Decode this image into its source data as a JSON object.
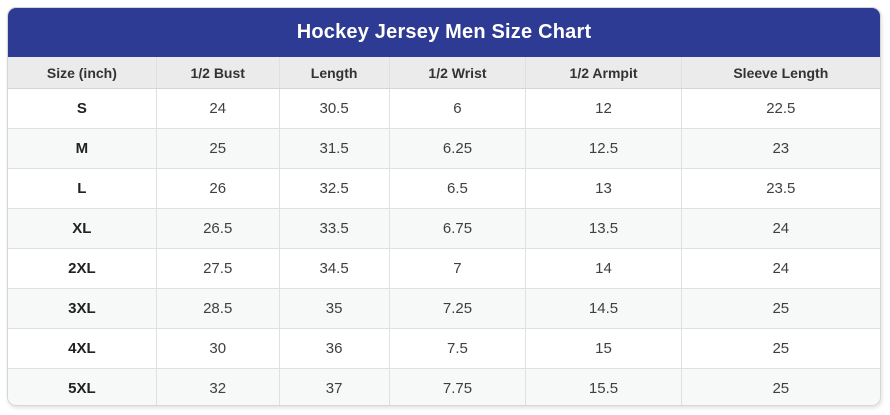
{
  "title": "Hockey Jersey Men Size Chart",
  "colors": {
    "title_bg": "#2e3b94",
    "title_text": "#ffffff",
    "header_bg": "#ebebeb",
    "row_stripe_bg": "#f7f8f8",
    "cell_border": "#e0e0e0",
    "body_text": "#3f3f3f"
  },
  "table": {
    "headers": [
      "Size (inch)",
      "1/2 Bust",
      "Length",
      "1/2 Wrist",
      "1/2 Armpit",
      "Sleeve Length"
    ],
    "rows": [
      [
        "S",
        "24",
        "30.5",
        "6",
        "12",
        "22.5"
      ],
      [
        "M",
        "25",
        "31.5",
        "6.25",
        "12.5",
        "23"
      ],
      [
        "L",
        "26",
        "32.5",
        "6.5",
        "13",
        "23.5"
      ],
      [
        "XL",
        "26.5",
        "33.5",
        "6.75",
        "13.5",
        "24"
      ],
      [
        "2XL",
        "27.5",
        "34.5",
        "7",
        "14",
        "24"
      ],
      [
        "3XL",
        "28.5",
        "35",
        "7.25",
        "14.5",
        "25"
      ],
      [
        "4XL",
        "30",
        "36",
        "7.5",
        "15",
        "25"
      ],
      [
        "5XL",
        "32",
        "37",
        "7.75",
        "15.5",
        "25"
      ]
    ]
  },
  "chart_data": {
    "type": "table",
    "title": "Hockey Jersey Men Size Chart",
    "unit": "inch",
    "columns": [
      "Size (inch)",
      "1/2 Bust",
      "Length",
      "1/2 Wrist",
      "1/2 Armpit",
      "Sleeve Length"
    ],
    "rows": [
      {
        "size": "S",
        "half_bust": 24,
        "length": 30.5,
        "half_wrist": 6,
        "half_armpit": 12,
        "sleeve_length": 22.5
      },
      {
        "size": "M",
        "half_bust": 25,
        "length": 31.5,
        "half_wrist": 6.25,
        "half_armpit": 12.5,
        "sleeve_length": 23
      },
      {
        "size": "L",
        "half_bust": 26,
        "length": 32.5,
        "half_wrist": 6.5,
        "half_armpit": 13,
        "sleeve_length": 23.5
      },
      {
        "size": "XL",
        "half_bust": 26.5,
        "length": 33.5,
        "half_wrist": 6.75,
        "half_armpit": 13.5,
        "sleeve_length": 24
      },
      {
        "size": "2XL",
        "half_bust": 27.5,
        "length": 34.5,
        "half_wrist": 7,
        "half_armpit": 14,
        "sleeve_length": 24
      },
      {
        "size": "3XL",
        "half_bust": 28.5,
        "length": 35,
        "half_wrist": 7.25,
        "half_armpit": 14.5,
        "sleeve_length": 25
      },
      {
        "size": "4XL",
        "half_bust": 30,
        "length": 36,
        "half_wrist": 7.5,
        "half_armpit": 15,
        "sleeve_length": 25
      },
      {
        "size": "5XL",
        "half_bust": 32,
        "length": 37,
        "half_wrist": 7.75,
        "half_armpit": 15.5,
        "sleeve_length": 25
      }
    ],
    "layout": {
      "striped_rows": true,
      "all_text_centered": true,
      "first_column_bold": true
    }
  }
}
